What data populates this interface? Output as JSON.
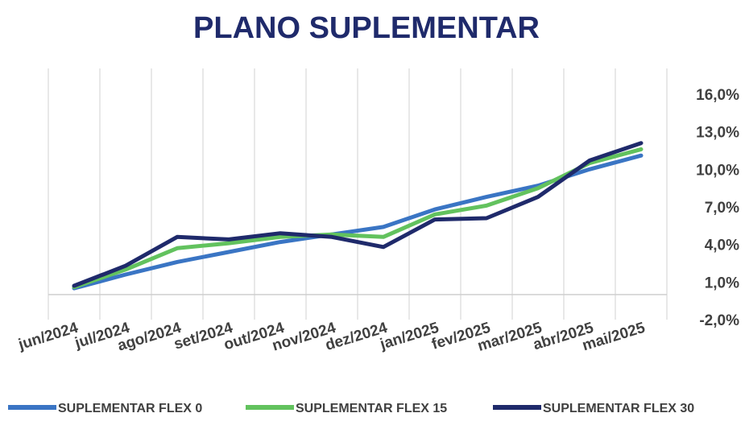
{
  "chart_data": {
    "type": "line",
    "title": "PLANO SUPLEMENTAR",
    "xlabel": "",
    "ylabel": "",
    "categories": [
      "jun/2024",
      "jul/2024",
      "ago/2024",
      "set/2024",
      "out/2024",
      "nov/2024",
      "dez/2024",
      "jan/2025",
      "fev/2025",
      "mar/2025",
      "abr/2025",
      "mai/2025"
    ],
    "ylim": [
      -2.0,
      16.0
    ],
    "yticks": [
      "16,0%",
      "13,0%",
      "10,0%",
      "7,0%",
      "4,0%",
      "1,0%",
      "-2,0%"
    ],
    "grid": true,
    "legend": "bottom",
    "series": [
      {
        "name": "SUPLEMENTAR FLEX 0",
        "color": "#3a75c4",
        "values": [
          0.5,
          1.6,
          2.6,
          3.4,
          4.2,
          4.8,
          5.4,
          6.8,
          7.8,
          8.7,
          10.0,
          11.1
        ]
      },
      {
        "name": "SUPLEMENTAR FLEX 15",
        "color": "#62c25e",
        "values": [
          0.6,
          2.0,
          3.7,
          4.1,
          4.6,
          4.8,
          4.6,
          6.4,
          7.1,
          8.5,
          10.5,
          11.6
        ]
      },
      {
        "name": "SUPLEMENTAR FLEX 30",
        "color": "#1f2a6b",
        "values": [
          0.7,
          2.3,
          4.6,
          4.4,
          4.9,
          4.6,
          3.8,
          6.0,
          6.1,
          7.8,
          10.7,
          12.1
        ]
      }
    ]
  }
}
